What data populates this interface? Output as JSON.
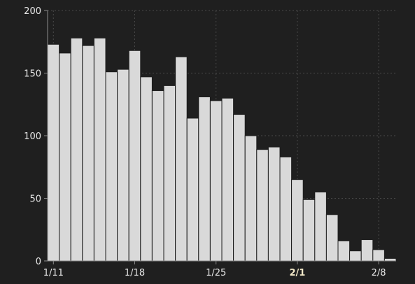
{
  "chart_data": {
    "type": "bar",
    "title": "",
    "xlabel": "",
    "ylabel": "",
    "ylim": [
      0,
      200
    ],
    "yticks": [
      0,
      50,
      100,
      150,
      200
    ],
    "grid": true,
    "dates": [
      "1/11",
      "1/12",
      "1/13",
      "1/14",
      "1/15",
      "1/16",
      "1/17",
      "1/18",
      "1/19",
      "1/20",
      "1/21",
      "1/22",
      "1/23",
      "1/24",
      "1/25",
      "1/26",
      "1/27",
      "1/28",
      "1/29",
      "1/30",
      "1/31",
      "2/1",
      "2/2",
      "2/3",
      "2/4",
      "2/5",
      "2/6",
      "2/7",
      "2/8",
      "2/9"
    ],
    "values": [
      173,
      166,
      178,
      172,
      178,
      151,
      153,
      168,
      147,
      136,
      140,
      163,
      114,
      131,
      128,
      130,
      117,
      100,
      89,
      91,
      83,
      65,
      49,
      55,
      37,
      16,
      8,
      17,
      9,
      2
    ],
    "xtick_labels": [
      {
        "date": "1/11",
        "label": "1/11",
        "bold": false
      },
      {
        "date": "1/18",
        "label": "1/18",
        "bold": false
      },
      {
        "date": "1/25",
        "label": "1/25",
        "bold": false
      },
      {
        "date": "2/1",
        "label": "2/1",
        "bold": true
      },
      {
        "date": "2/8",
        "label": "2/8",
        "bold": false
      }
    ],
    "colors": {
      "background": "#1f1f1f",
      "bar": "#d9d9d9",
      "bar_edge": "#1f1f1f",
      "grid": "#4a4a4a",
      "axis": "#8c8c8c",
      "text": "#e8e8e8",
      "text_bold": "#f2e8c8"
    }
  }
}
